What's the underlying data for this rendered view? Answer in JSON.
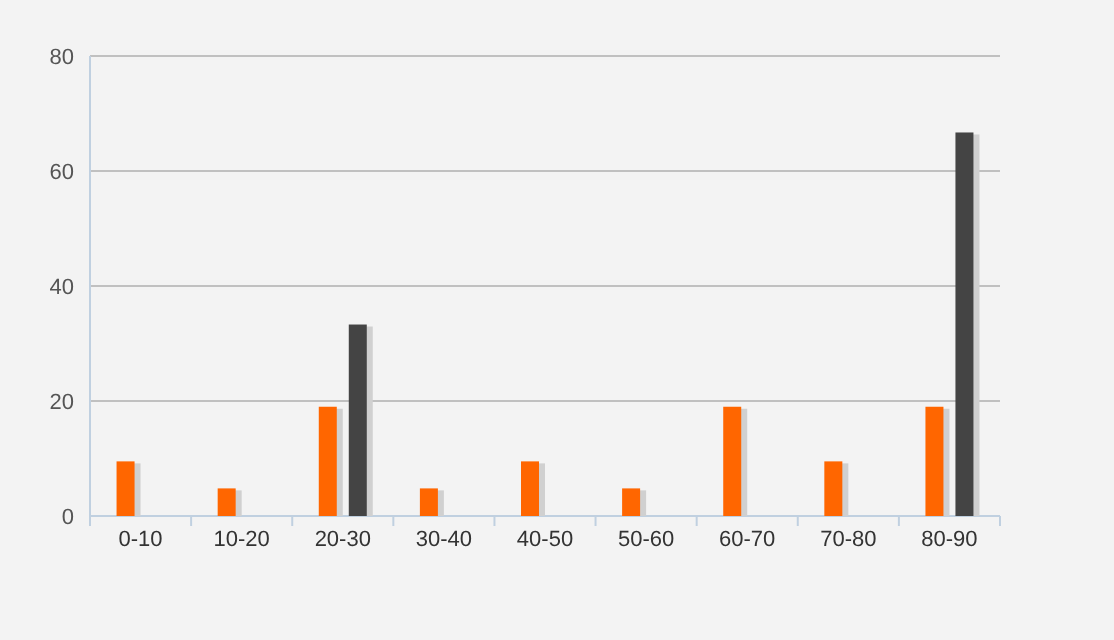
{
  "chart_data": {
    "type": "bar",
    "categories": [
      "0-10",
      "10-20",
      "20-30",
      "30-40",
      "40-50",
      "50-60",
      "60-70",
      "70-80",
      "80-90"
    ],
    "series": [
      {
        "color": "#ff6600",
        "values": [
          9.5,
          4.8,
          19,
          4.8,
          9.5,
          4.8,
          19,
          9.5,
          19
        ]
      },
      {
        "color": "#444444",
        "values": [
          null,
          null,
          33.3,
          null,
          null,
          null,
          null,
          null,
          66.7
        ]
      }
    ],
    "ylim": [
      0,
      80
    ],
    "yticks": [
      0,
      20,
      40,
      60,
      80
    ],
    "grid": "y"
  }
}
